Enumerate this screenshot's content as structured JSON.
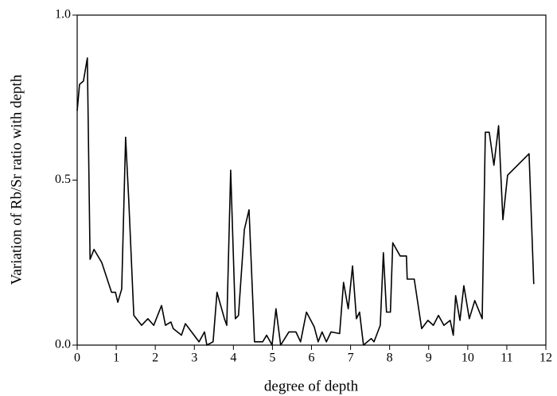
{
  "chart_data": {
    "type": "line",
    "x_label": "degree of depth",
    "y_label": "Variation of Rb/Sr ratio with depth",
    "xlim": [
      0,
      12
    ],
    "ylim": [
      0,
      1
    ],
    "xticks": [
      0,
      1,
      2,
      3,
      4,
      5,
      6,
      7,
      8,
      9,
      10,
      11,
      12
    ],
    "yticks": [
      {
        "value": 0,
        "label": "0.0"
      },
      {
        "value": 0.5,
        "label": "0.5"
      },
      {
        "value": 1,
        "label": "1.0"
      }
    ],
    "grid": false,
    "series": [
      {
        "name": "Rb/Sr",
        "color": "#000000",
        "x": [
          0,
          0.06,
          0.16,
          0.26,
          0.33,
          0.43,
          0.63,
          0.88,
          0.98,
          1.04,
          1.14,
          1.24,
          1.32,
          1.45,
          1.65,
          1.81,
          1.96,
          2.16,
          2.26,
          2.4,
          2.46,
          2.67,
          2.77,
          3.12,
          3.26,
          3.32,
          3.48,
          3.58,
          3.77,
          3.83,
          3.93,
          4.05,
          4.13,
          4.28,
          4.4,
          4.54,
          4.75,
          4.85,
          4.99,
          5.09,
          5.21,
          5.42,
          5.6,
          5.72,
          5.87,
          6.07,
          6.17,
          6.27,
          6.38,
          6.5,
          6.72,
          6.82,
          6.94,
          7.05,
          7.15,
          7.23,
          7.33,
          7.53,
          7.6,
          7.76,
          7.84,
          7.92,
          8.02,
          8.08,
          8.27,
          8.43,
          8.45,
          8.63,
          8.82,
          8.98,
          9.12,
          9.25,
          9.39,
          9.55,
          9.63,
          9.69,
          9.8,
          9.9,
          10.04,
          10.18,
          10.37,
          10.45,
          10.55,
          10.67,
          10.79,
          10.9,
          11.02,
          11.57,
          11.69
        ],
        "values": [
          0.71,
          0.79,
          0.8,
          0.87,
          0.26,
          0.29,
          0.25,
          0.16,
          0.16,
          0.13,
          0.17,
          0.63,
          0.44,
          0.09,
          0.06,
          0.08,
          0.06,
          0.12,
          0.06,
          0.07,
          0.05,
          0.03,
          0.065,
          0.01,
          0.04,
          0,
          0.01,
          0.16,
          0.08,
          0.06,
          0.53,
          0.08,
          0.09,
          0.35,
          0.41,
          0.01,
          0.01,
          0.03,
          0,
          0.11,
          0,
          0.04,
          0.04,
          0.01,
          0.1,
          0.055,
          0.01,
          0.04,
          0.01,
          0.04,
          0.035,
          0.19,
          0.11,
          0.24,
          0.08,
          0.1,
          0,
          0.02,
          0.01,
          0.06,
          0.28,
          0.1,
          0.1,
          0.31,
          0.27,
          0.27,
          0.2,
          0.2,
          0.05,
          0.075,
          0.06,
          0.09,
          0.06,
          0.075,
          0.03,
          0.15,
          0.075,
          0.18,
          0.08,
          0.135,
          0.08,
          0.645,
          0.645,
          0.545,
          0.665,
          0.38,
          0.515,
          0.58,
          0.185
        ]
      }
    ]
  }
}
